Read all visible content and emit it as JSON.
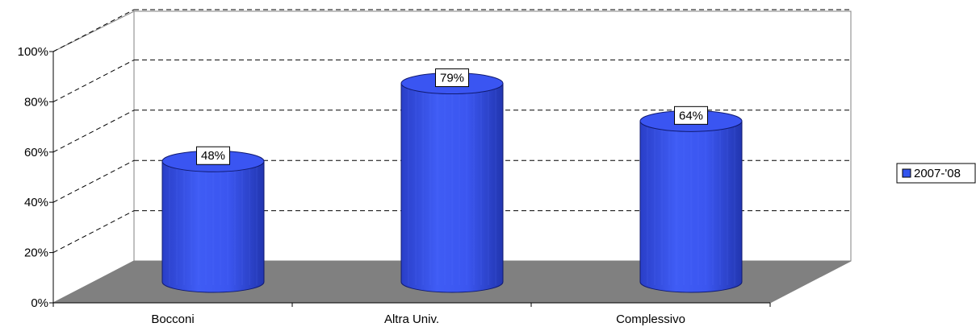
{
  "chart_data": {
    "type": "bar",
    "style": "3d-cylinder",
    "categories": [
      "Bocconi",
      "Altra Univ.",
      "Complessivo"
    ],
    "series": [
      {
        "name": "2007-'08",
        "values": [
          48,
          79,
          64
        ],
        "color": "#3355ee"
      }
    ],
    "data_labels": [
      "48%",
      "79%",
      "64%"
    ],
    "y_ticks": [
      {
        "value": 0,
        "label": "0%"
      },
      {
        "value": 20,
        "label": "20%"
      },
      {
        "value": 40,
        "label": "40%"
      },
      {
        "value": 60,
        "label": "60%"
      },
      {
        "value": 80,
        "label": "80%"
      },
      {
        "value": 100,
        "label": "100%"
      }
    ],
    "ylim": [
      0,
      100
    ],
    "grid": true,
    "legend_position": "right",
    "floor_color": "#808080"
  }
}
